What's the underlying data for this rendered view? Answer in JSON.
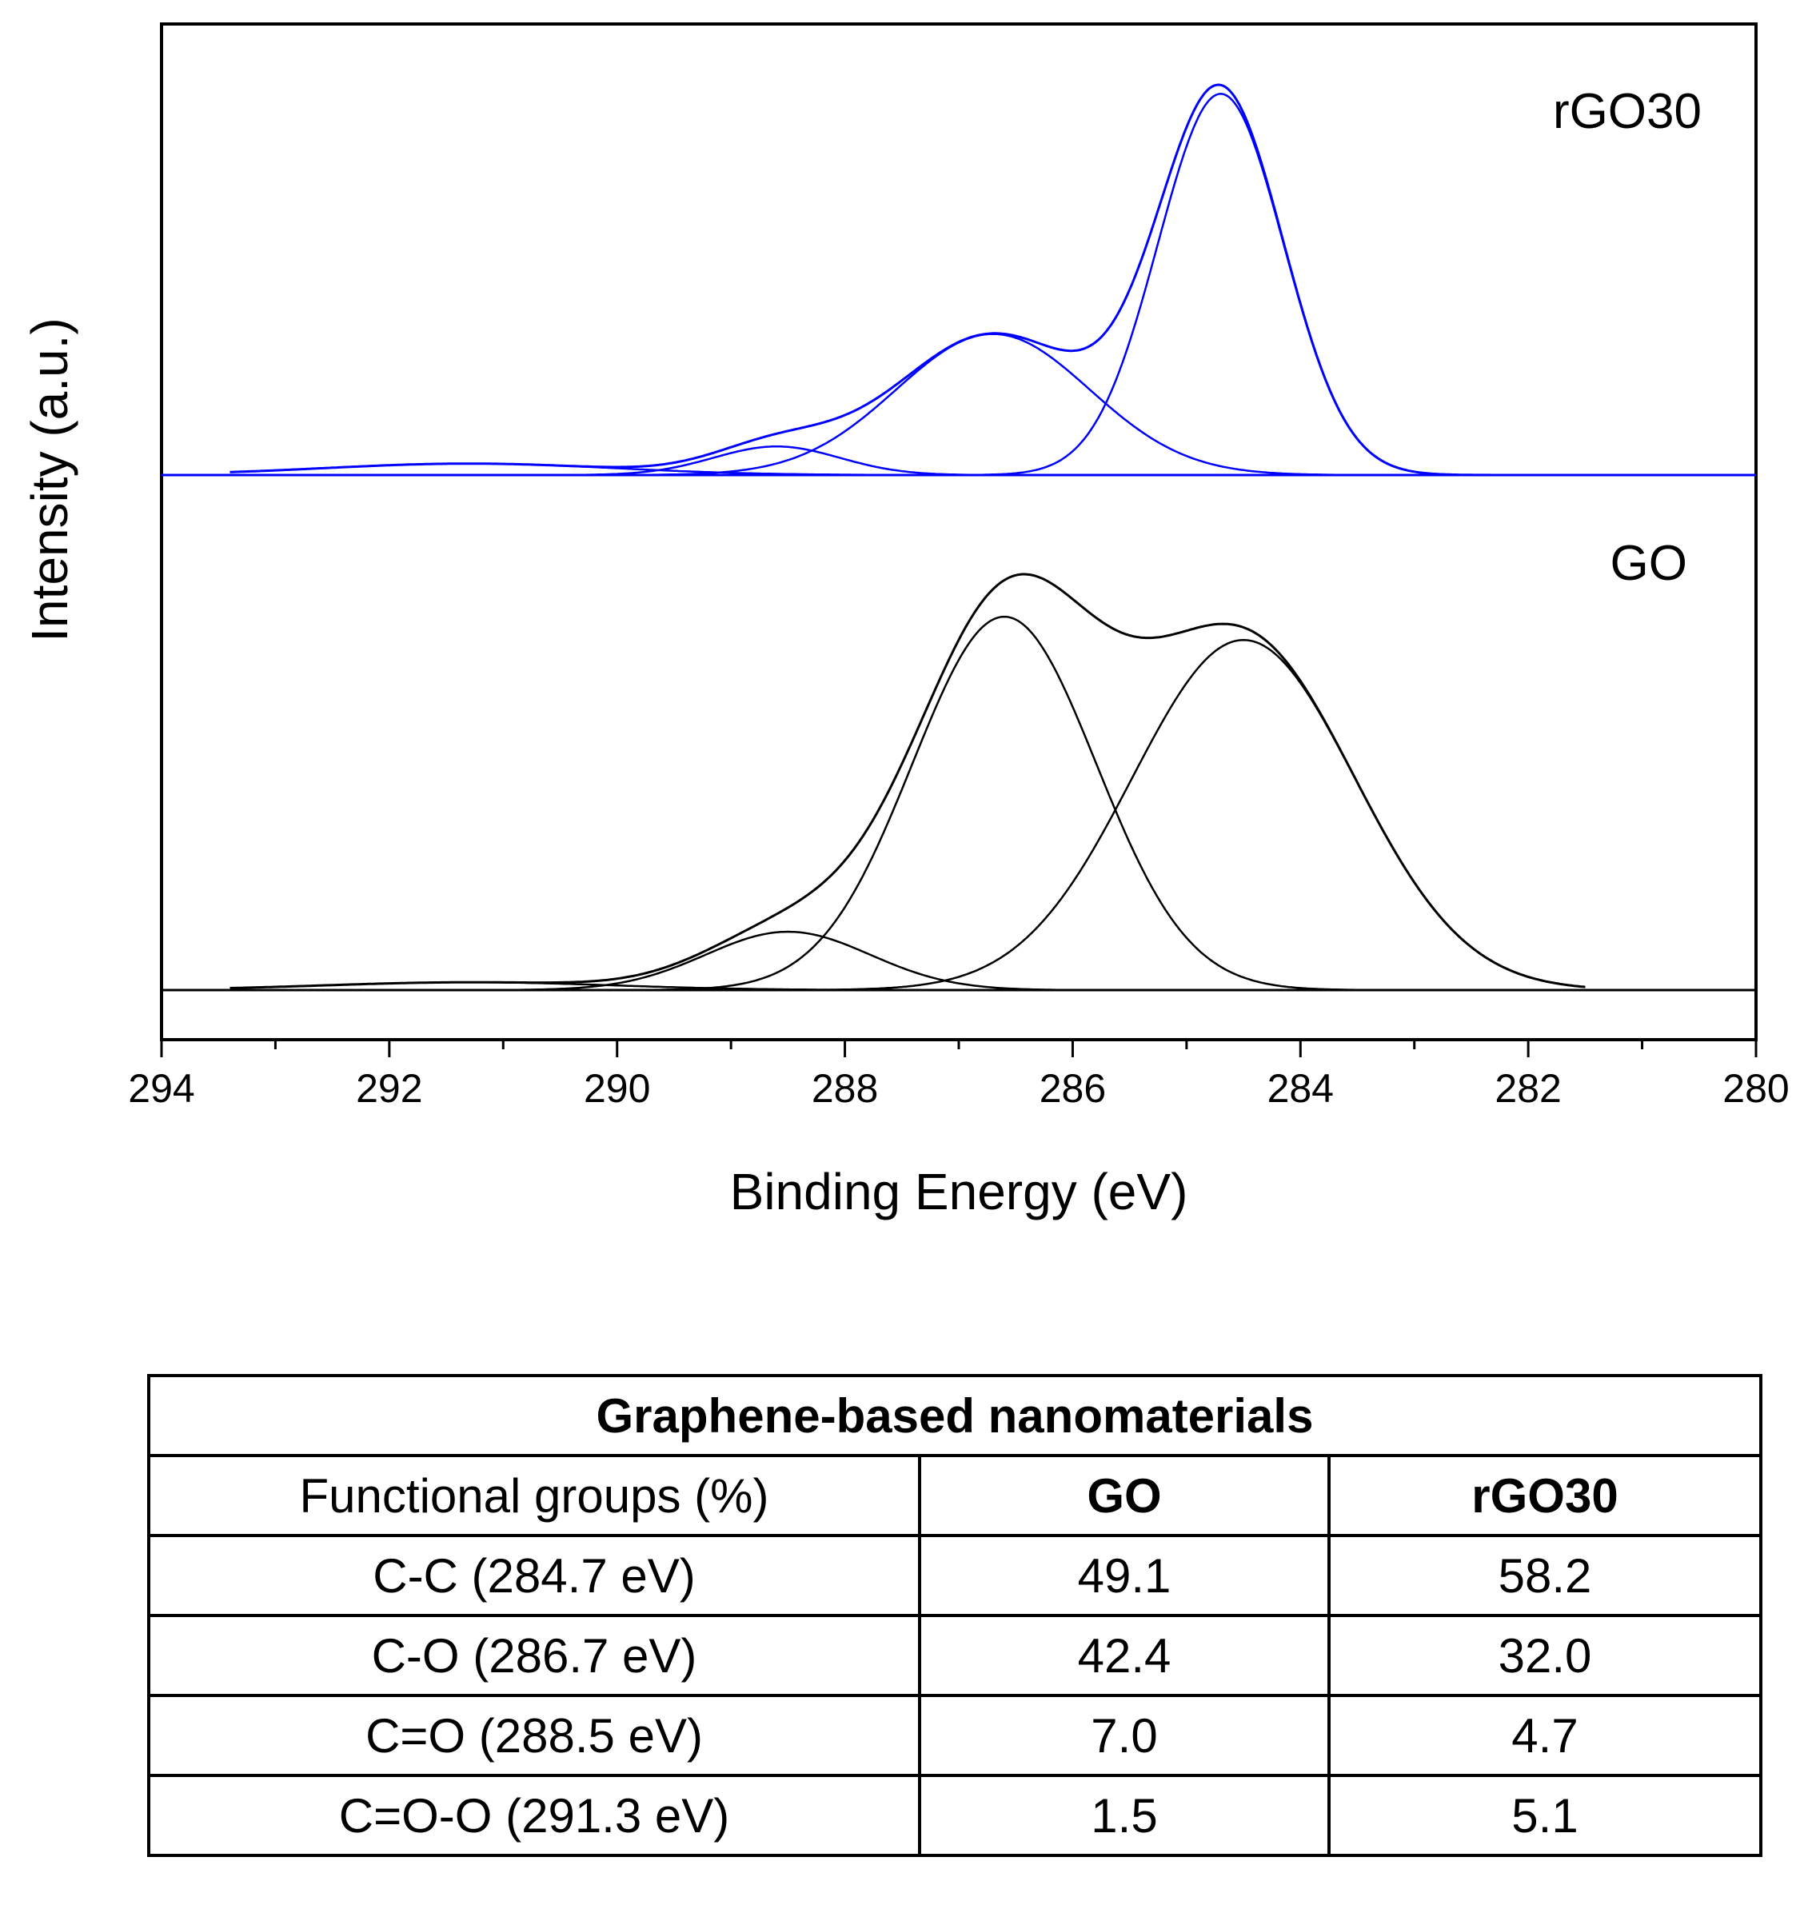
{
  "chart_data": {
    "type": "line",
    "title": "",
    "xlabel": "Binding Energy (eV)",
    "ylabel": "Intensity (a.u.)",
    "xlim": [
      294,
      280
    ],
    "x_reversed": true,
    "x_ticks": [
      294,
      292,
      290,
      288,
      286,
      284,
      282,
      280
    ],
    "y_ticks_shown": false,
    "series": [
      {
        "name": "rGO30",
        "color": "#0000ff",
        "baseline": 0,
        "envelope_peak": 1.0,
        "components": [
          {
            "center": 284.7,
            "height": 1.0,
            "fwhm": 1.3
          },
          {
            "center": 286.7,
            "height": 0.37,
            "fwhm": 2.0
          },
          {
            "center": 288.6,
            "height": 0.075,
            "fwhm": 1.3
          },
          {
            "center": 291.3,
            "height": 0.03,
            "fwhm": 3.0
          }
        ]
      },
      {
        "name": "GO",
        "color": "#000000",
        "baseline": 0,
        "envelope_peak": 1.0,
        "components": [
          {
            "center": 284.5,
            "height": 0.9,
            "fwhm": 2.3
          },
          {
            "center": 286.6,
            "height": 0.96,
            "fwhm": 1.9
          },
          {
            "center": 288.5,
            "height": 0.15,
            "fwhm": 1.7
          },
          {
            "center": 291.3,
            "height": 0.02,
            "fwhm": 3.0
          }
        ]
      }
    ]
  },
  "table": {
    "title": "Graphene-based nanomaterials",
    "header": [
      "Functional groups (%)",
      "GO",
      "rGO30"
    ],
    "rows": [
      [
        "C-C (284.7 eV)",
        "49.1",
        "58.2"
      ],
      [
        "C-O (286.7 eV)",
        "42.4",
        "32.0"
      ],
      [
        "C=O (288.5 eV)",
        "7.0",
        "4.7"
      ],
      [
        "C=O-O (291.3 eV)",
        "1.5",
        "5.1"
      ]
    ]
  }
}
